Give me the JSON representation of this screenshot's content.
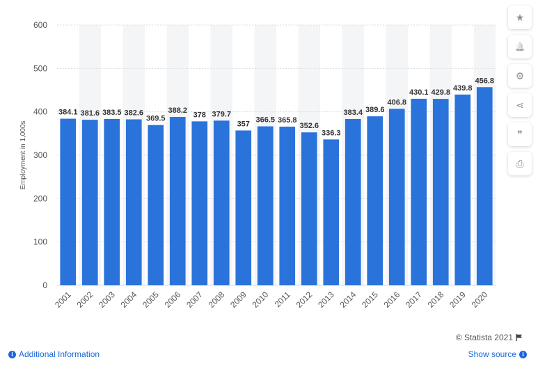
{
  "chart_data": {
    "type": "bar",
    "categories": [
      "2001",
      "2002",
      "2003",
      "2004",
      "2005",
      "2006",
      "2007",
      "2008",
      "2009",
      "2010",
      "2011",
      "2012",
      "2013",
      "2014",
      "2015",
      "2016",
      "2017",
      "2018",
      "2019",
      "2020"
    ],
    "values": [
      384.1,
      381.6,
      383.5,
      382.6,
      369.5,
      388.2,
      378,
      379.7,
      357,
      366.5,
      365.8,
      352.6,
      336.3,
      383.4,
      389.6,
      406.8,
      430.1,
      429.8,
      439.8,
      456.8
    ],
    "value_labels": [
      "384.1",
      "381.6",
      "383.5",
      "382.6",
      "369.5",
      "388.2",
      "378",
      "379.7",
      "357",
      "366.5",
      "365.8",
      "352.6",
      "336.3",
      "383.4",
      "389.6",
      "406.8",
      "430.1",
      "429.8",
      "439.8",
      "456.8"
    ],
    "yticks": [
      0,
      100,
      200,
      300,
      400,
      500,
      600
    ],
    "ylim": [
      0,
      600
    ],
    "ylabel": "Employment in 1,000s",
    "xlabel": "",
    "title": "",
    "bar_color": "#2a73db",
    "grid": true
  },
  "sidebar": {
    "buttons": [
      {
        "name": "favorite-button",
        "icon": "star-icon",
        "glyph": "★"
      },
      {
        "name": "notification-button",
        "icon": "bell-icon",
        "glyph": "🔔"
      },
      {
        "name": "settings-button",
        "icon": "gear-icon",
        "glyph": "⚙"
      },
      {
        "name": "share-button",
        "icon": "share-icon",
        "glyph": "⋖"
      },
      {
        "name": "cite-button",
        "icon": "quote-icon",
        "glyph": "❞"
      },
      {
        "name": "print-button",
        "icon": "printer-icon",
        "glyph": "⎙"
      }
    ]
  },
  "footer": {
    "credit": "© Statista 2021",
    "additional_info": "Additional Information",
    "show_source": "Show source"
  }
}
